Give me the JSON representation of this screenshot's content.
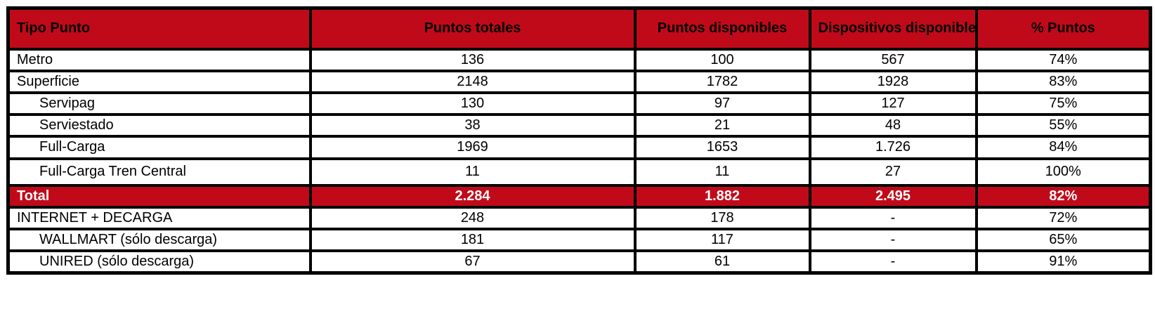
{
  "table": {
    "accent_color": "#c00a1a",
    "columns": [
      "Tipo Punto",
      "Puntos totales",
      "Puntos disponibles",
      "Dispositivos disponibles",
      "% Puntos"
    ],
    "rows": [
      {
        "label": "Metro",
        "indent": false,
        "highlight": false,
        "label_bold": true,
        "values": [
          "136",
          "100",
          "567",
          "74%"
        ],
        "values_bold": [
          true,
          true,
          true,
          false
        ]
      },
      {
        "label": "Superficie",
        "indent": false,
        "highlight": false,
        "label_bold": true,
        "values": [
          "2148",
          "1782",
          "1928",
          "83%"
        ],
        "values_bold": [
          true,
          true,
          true,
          false
        ]
      },
      {
        "label": "Servipag",
        "indent": true,
        "highlight": false,
        "label_bold": false,
        "values": [
          "130",
          "97",
          "127",
          "75%"
        ],
        "values_bold": [
          false,
          false,
          false,
          false
        ]
      },
      {
        "label": "Serviestado",
        "indent": true,
        "highlight": false,
        "label_bold": false,
        "values": [
          "38",
          "21",
          "48",
          "55%"
        ],
        "values_bold": [
          false,
          false,
          false,
          false
        ]
      },
      {
        "label": "Full-Carga",
        "indent": true,
        "highlight": false,
        "label_bold": false,
        "values": [
          "1969",
          "1653",
          "1.726",
          "84%"
        ],
        "values_bold": [
          false,
          false,
          false,
          false
        ]
      },
      {
        "label": "Full-Carga Tren Central",
        "indent": true,
        "highlight": false,
        "label_bold": false,
        "values": [
          "11",
          "11",
          "27",
          "100%"
        ],
        "values_bold": [
          false,
          false,
          false,
          false
        ]
      },
      {
        "label": "Total",
        "indent": false,
        "highlight": true,
        "label_bold": true,
        "values": [
          "2.284",
          "1.882",
          "2.495",
          "82%"
        ],
        "values_bold": [
          true,
          true,
          true,
          true
        ]
      },
      {
        "label": "INTERNET + DECARGA",
        "indent": false,
        "highlight": false,
        "label_bold": true,
        "values": [
          "248",
          "178",
          "-",
          "72%"
        ],
        "values_bold": [
          true,
          true,
          true,
          false
        ]
      },
      {
        "label": "WALLMART (sólo descarga)",
        "indent": true,
        "highlight": false,
        "label_bold": false,
        "values": [
          "181",
          "117",
          "-",
          "65%"
        ],
        "values_bold": [
          false,
          true,
          true,
          false
        ]
      },
      {
        "label": "UNIRED (sólo descarga)",
        "indent": true,
        "highlight": false,
        "label_bold": false,
        "values": [
          "67",
          "61",
          "-",
          "91%"
        ],
        "values_bold": [
          false,
          true,
          true,
          false
        ]
      }
    ]
  }
}
